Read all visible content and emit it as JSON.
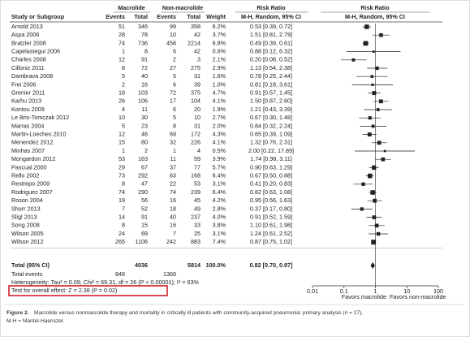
{
  "chart_data": {
    "type": "forest",
    "headers": {
      "group1": "Macrolide",
      "group2": "Non-macrolide",
      "rr_text": "Risk Ratio",
      "rr_plot": "Risk Ratio",
      "study": "Study or Subgroup",
      "events1": "Events",
      "total1": "Total",
      "events2": "Events",
      "total2": "Total",
      "weight": "Weight",
      "method_text": "M-H, Random, 95% CI",
      "method_plot": "M-H, Random, 95% CI"
    },
    "categories": [
      "Arnold 2013",
      "Aspa 2006",
      "Bratzler 2008",
      "Capelastegui 2006",
      "Charles 2008",
      "Cilloniz 2011",
      "Dambrava 2008",
      "Frei 2006",
      "Grenier 2011",
      "Karhu 2013",
      "Kontou 2009",
      "Le Bris-Tomczak 2012",
      "Marras 2004",
      "Martin-Loeches 2010",
      "Menendez 2012",
      "Minhas 2007",
      "Mongardon 2012",
      "Pascual 2000",
      "Rello 2002",
      "Restrepo 2009",
      "Rodriguez 2007",
      "Roson 2004",
      "Shorr 2013",
      "Sligl 2013",
      "Song 2008",
      "Wilson 2005",
      "Wilson 2012"
    ],
    "macrolide_events": [
      51,
      28,
      74,
      1,
      12,
      8,
      5,
      2,
      18,
      26,
      4,
      10,
      5,
      12,
      15,
      1,
      53,
      29,
      73,
      8,
      74,
      19,
      7,
      14,
      8,
      24,
      265
    ],
    "macrolide_total": [
      346,
      78,
      736,
      8,
      91,
      72,
      40,
      16,
      103,
      106,
      11,
      30,
      23,
      46,
      80,
      2,
      163,
      67,
      292,
      47,
      290,
      56,
      52,
      91,
      15,
      69,
      1106
    ],
    "non_macrolide_events": [
      99,
      10,
      458,
      6,
      2,
      27,
      5,
      6,
      72,
      17,
      6,
      5,
      8,
      69,
      32,
      1,
      11,
      37,
      63,
      22,
      74,
      16,
      18,
      40,
      16,
      7,
      242
    ],
    "non_macrolide_total": [
      358,
      42,
      2214,
      42,
      3,
      275,
      31,
      39,
      375,
      104,
      20,
      10,
      31,
      172,
      226,
      4,
      59,
      77,
      168,
      53,
      239,
      45,
      49,
      237,
      33,
      25,
      883
    ],
    "weights": [
      6.2,
      3.7,
      6.8,
      0.6,
      2.1,
      2.9,
      1.6,
      1.0,
      4.7,
      4.1,
      1.9,
      2.7,
      2.0,
      4.3,
      4.1,
      0.5,
      3.9,
      5.7,
      6.4,
      3.1,
      6.4,
      4.2,
      2.8,
      4.0,
      3.8,
      3.1,
      7.4
    ],
    "weight_labels": [
      "6.2%",
      "3.7%",
      "6.8%",
      "0.6%",
      "2.1%",
      "2.9%",
      "1.6%",
      "1.0%",
      "4.7%",
      "4.1%",
      "1.9%",
      "2.7%",
      "2.0%",
      "4.3%",
      "4.1%",
      "0.5%",
      "3.9%",
      "5.7%",
      "6.4%",
      "3.1%",
      "6.4%",
      "4.2%",
      "2.8%",
      "4.0%",
      "3.8%",
      "3.1%",
      "7.4%"
    ],
    "values": [
      0.53,
      1.51,
      0.49,
      0.88,
      0.2,
      1.13,
      0.78,
      0.81,
      0.91,
      1.5,
      1.21,
      0.67,
      0.84,
      0.65,
      1.32,
      2.0,
      1.74,
      0.9,
      0.67,
      0.41,
      0.82,
      0.95,
      0.37,
      0.91,
      1.1,
      1.24,
      0.87
    ],
    "lower": [
      0.39,
      0.81,
      0.39,
      0.12,
      0.08,
      0.54,
      0.25,
      0.18,
      0.57,
      0.87,
      0.43,
      0.3,
      0.32,
      0.39,
      0.76,
      0.22,
      0.98,
      0.63,
      0.5,
      0.2,
      0.63,
      0.56,
      0.17,
      0.52,
      0.61,
      0.61,
      0.75
    ],
    "upper": [
      0.72,
      2.79,
      0.61,
      6.32,
      0.52,
      2.38,
      2.44,
      3.61,
      1.45,
      2.6,
      3.39,
      1.48,
      2.24,
      1.09,
      2.31,
      17.89,
      3.11,
      1.29,
      0.88,
      0.83,
      1.08,
      1.63,
      0.8,
      1.59,
      1.98,
      2.52,
      1.02
    ],
    "value_labels": [
      "0.53 [0.39, 0.72]",
      "1.51 [0.81, 2.79]",
      "0.49 [0.39, 0.61]",
      "0.88 [0.12, 6.32]",
      "0.20 [0.08, 0.52]",
      "1.13 [0.54, 2.38]",
      "0.78 [0.25, 2.44]",
      "0.81 [0.18, 3.61]",
      "0.91 [0.57, 1.45]",
      "1.50 [0.87, 2.60]",
      "1.21 [0.43, 3.39]",
      "0.67 [0.30, 1.48]",
      "0.84 [0.32, 2.24]",
      "0.65 [0.39, 1.09]",
      "1.32 [0.76, 2.31]",
      "2.00 [0.22, 17.89]",
      "1.74 [0.98, 3.11]",
      "0.90 [0.63, 1.29]",
      "0.67 [0.50, 0.88]",
      "0.41 [0.20, 0.83]",
      "0.82 [0.63, 1.08]",
      "0.95 [0.56, 1.63]",
      "0.37 [0.17, 0.80]",
      "0.91 [0.52, 1.59]",
      "1.10 [0.61, 1.98]",
      "1.24 [0.61, 2.52]",
      "0.87 [0.75, 1.02]"
    ],
    "total": {
      "label": "Total (95% CI)",
      "macrolide_total": 4036,
      "non_macrolide_total": 5814,
      "weight": 100.0,
      "weight_label": "100.0%",
      "value": 0.82,
      "lower": 0.7,
      "upper": 0.97,
      "value_label": "0.82 [0.70, 0.97]"
    },
    "total_events": {
      "label": "Total events",
      "macrolide": 846,
      "non_macrolide": 1369
    },
    "heterogeneity": "Heterogeneity: Tau² = 0.09; Chi² = 69.31, df = 26 (P < 0.00001); I² = 63%",
    "overall_effect": "Test for overall effect: Z = 2.38 (P = 0.02)",
    "x_left_label": "Favors macrolide",
    "x_right_label": "Favors non-macrolide",
    "xlim": [
      0.01,
      100
    ],
    "xticks": [
      0.01,
      0.1,
      1,
      10,
      100
    ],
    "log_scale": true,
    "color": "#222222",
    "caption_label": "Figure 2.",
    "caption": "Macrolide versus nonmacrolide therapy and mortality in critically ill patients with community-acquired pneumonia: primary analysis (n = 27).",
    "caption_note": "M-H = Mantel-Haenszel."
  }
}
